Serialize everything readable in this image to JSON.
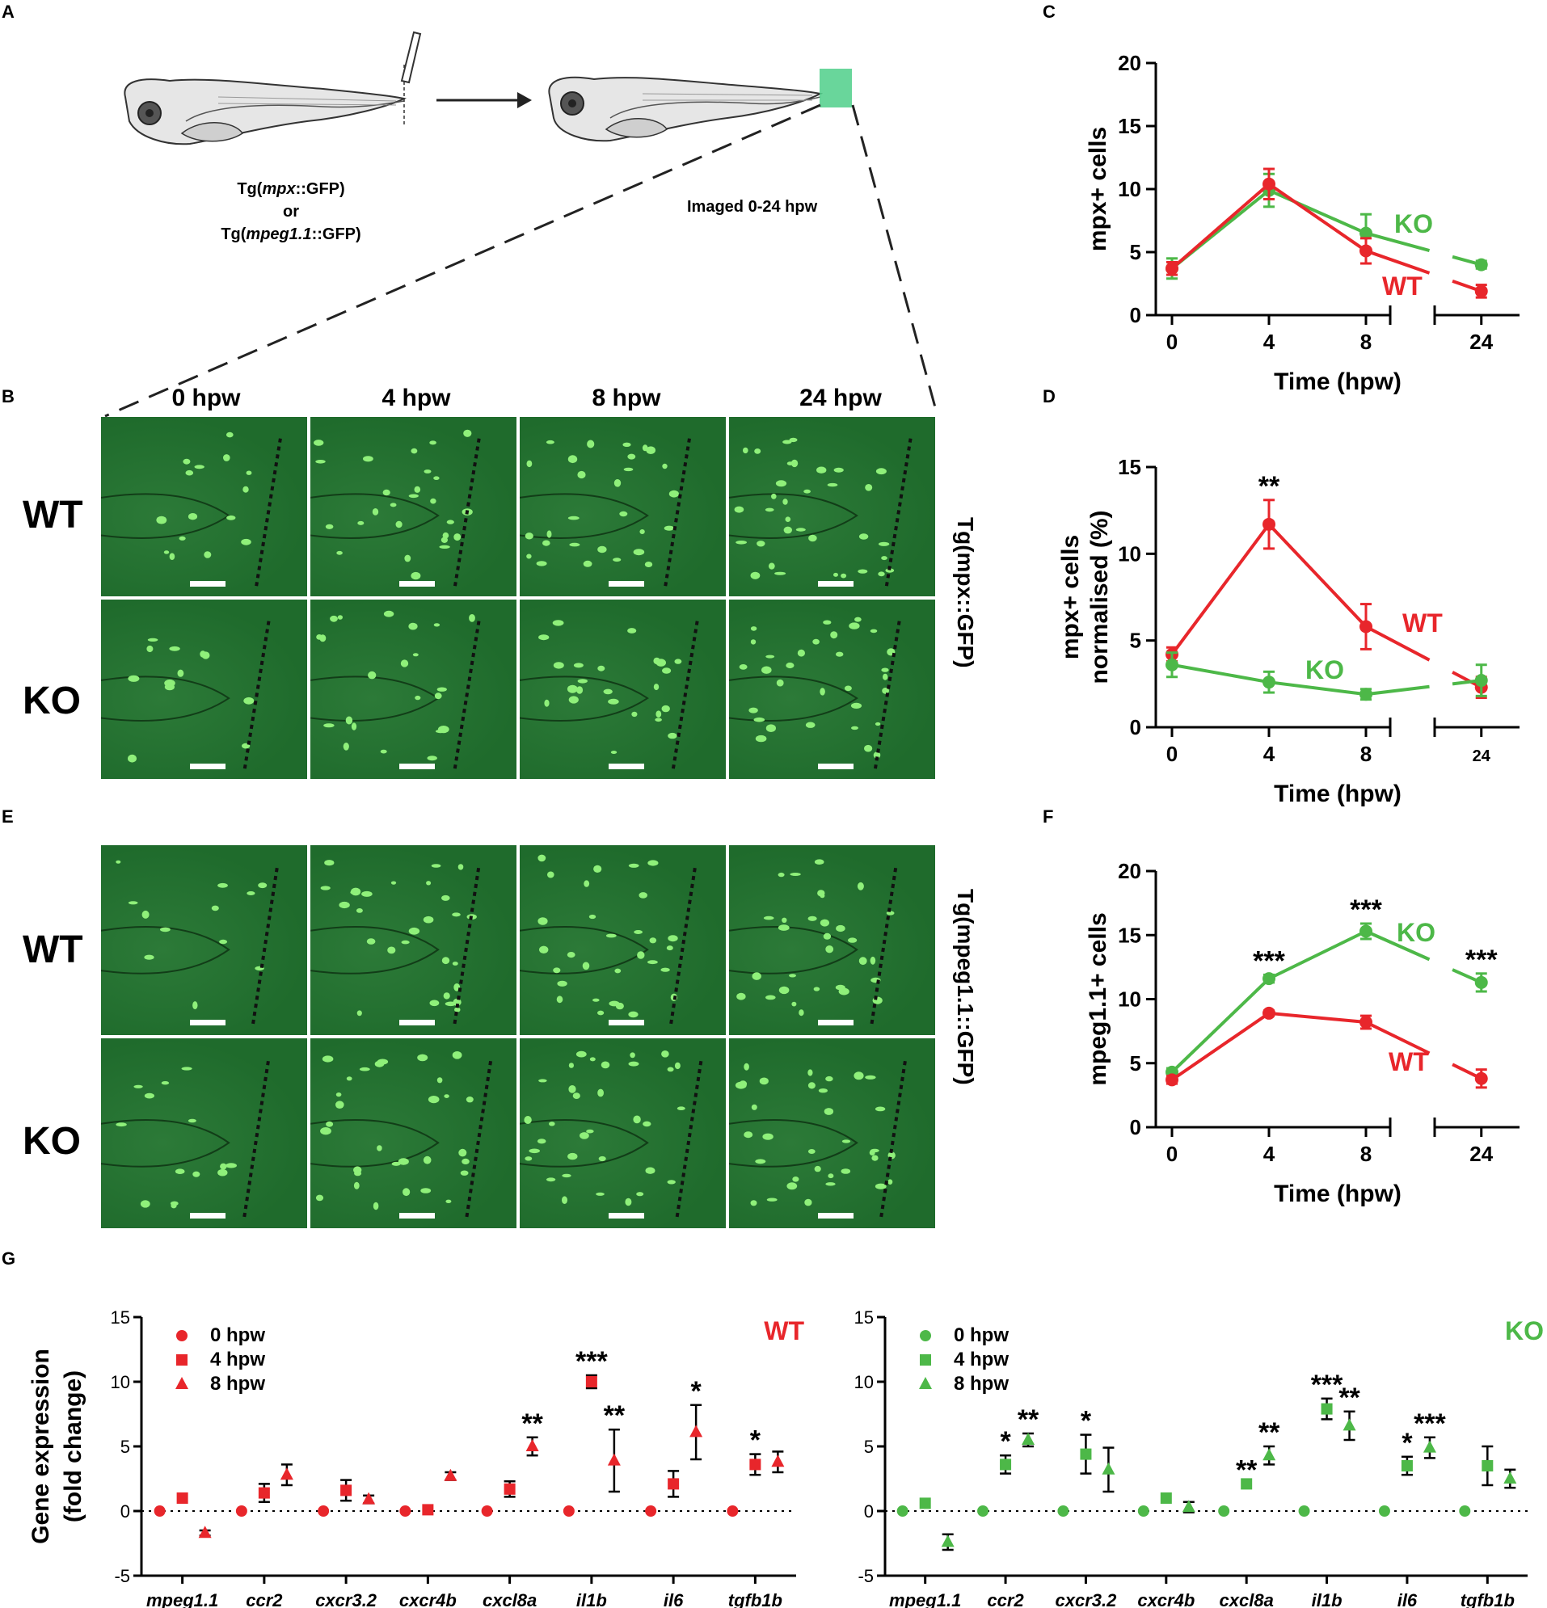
{
  "panel_letters": {
    "A": "A",
    "B": "B",
    "C": "C",
    "D": "D",
    "E": "E",
    "F": "F",
    "G": "G"
  },
  "panelA": {
    "label_line1_pre": "Tg(",
    "label_line1_italic": "mpx",
    "label_line1_post": "::GFP)",
    "label_or": "or",
    "label_line3_pre": "Tg(",
    "label_line3_italic": "mpeg1.1",
    "label_line3_post": "::GFP)",
    "imaged_label": "Imaged 0-24 hpw"
  },
  "panelB": {
    "columns": [
      "0 hpw",
      "4 hpw",
      "8 hpw",
      "24 hpw"
    ],
    "rows": [
      "WT",
      "KO"
    ],
    "side_label": "Tg(mpx::GFP)"
  },
  "panelE": {
    "rows": [
      "WT",
      "KO"
    ],
    "side_label": "Tg(mpeg1.1::GFP)"
  },
  "colors": {
    "wt": "#e8262b",
    "ko": "#4db848"
  },
  "chart_data": [
    {
      "id": "C",
      "type": "line",
      "ylabel": "mpx+ cells",
      "xlabel": "Time (hpw)",
      "x": [
        0,
        4,
        8,
        24
      ],
      "xticks": [
        "0",
        "4",
        "8",
        "24"
      ],
      "ylim": [
        0,
        20
      ],
      "yticks": [
        "0",
        "5",
        "10",
        "15",
        "20"
      ],
      "series": [
        {
          "name": "KO",
          "values": [
            3.7,
            9.9,
            6.5,
            4.0
          ],
          "err": [
            0.8,
            1.3,
            1.5,
            0.3
          ]
        },
        {
          "name": "WT",
          "values": [
            3.7,
            10.4,
            5.1,
            1.9
          ],
          "err": [
            0.5,
            1.2,
            1.0,
            0.5
          ]
        }
      ],
      "annotations": []
    },
    {
      "id": "D",
      "type": "line",
      "ylabel_line1": "mpx+ cells",
      "ylabel_line2": "normalised (%)",
      "xlabel": "Time (hpw)",
      "x": [
        0,
        4,
        8,
        24
      ],
      "xticks": [
        "0",
        "4",
        "8",
        "24"
      ],
      "ylim": [
        0,
        15
      ],
      "yticks": [
        "0",
        "5",
        "10",
        "15"
      ],
      "series": [
        {
          "name": "WT",
          "values": [
            4.2,
            11.7,
            5.8,
            2.3
          ],
          "err": [
            0.4,
            1.4,
            1.3,
            0.6
          ]
        },
        {
          "name": "KO",
          "values": [
            3.6,
            2.6,
            1.9,
            2.7
          ],
          "err": [
            0.7,
            0.6,
            0.3,
            0.9
          ]
        }
      ],
      "annotations": [
        {
          "x": 4,
          "text": "**"
        }
      ]
    },
    {
      "id": "F",
      "type": "line",
      "ylabel": "mpeg1.1+ cells",
      "xlabel": "Time (hpw)",
      "x": [
        0,
        4,
        8,
        24
      ],
      "xticks": [
        "0",
        "4",
        "8",
        "24"
      ],
      "ylim": [
        0,
        20
      ],
      "yticks": [
        "0",
        "5",
        "10",
        "15",
        "20"
      ],
      "series": [
        {
          "name": "KO",
          "values": [
            4.3,
            11.6,
            15.3,
            11.3
          ],
          "err": [
            0.3,
            0.3,
            0.6,
            0.7
          ]
        },
        {
          "name": "WT",
          "values": [
            3.7,
            8.9,
            8.2,
            3.8
          ],
          "err": [
            0.3,
            0.2,
            0.5,
            0.7
          ]
        }
      ],
      "annotations": [
        {
          "x": 4,
          "text": "***"
        },
        {
          "x": 8,
          "text": "***"
        },
        {
          "x": 24,
          "text": "***"
        }
      ]
    },
    {
      "id": "G-WT",
      "type": "scatter",
      "title": "WT",
      "ylabel_line1": "Gene expression",
      "ylabel_line2": "(fold change)",
      "categories": [
        "mpeg1.1",
        "ccr2",
        "cxcr3.2",
        "cxcr4b",
        "cxcl8a",
        "il1b",
        "il6",
        "tgfb1b"
      ],
      "ylim": [
        -5,
        15
      ],
      "yticks": [
        "-5",
        "0",
        "5",
        "10",
        "15"
      ],
      "legend": [
        "0 hpw",
        "4 hpw",
        "8 hpw"
      ],
      "series": [
        {
          "name": "0 hpw",
          "values": [
            0,
            0,
            0,
            0,
            0,
            0,
            0,
            0
          ],
          "err": [
            0,
            0,
            0,
            0,
            0,
            0,
            0,
            0
          ]
        },
        {
          "name": "4 hpw",
          "values": [
            1.0,
            1.4,
            1.6,
            0.1,
            1.7,
            10.0,
            2.1,
            3.6
          ],
          "err": [
            0,
            0.7,
            0.8,
            0,
            0.6,
            0.5,
            1.0,
            0.8
          ]
        },
        {
          "name": "8 hpw",
          "values": [
            -1.7,
            2.8,
            0.9,
            2.7,
            5.0,
            3.9,
            6.1,
            3.8
          ],
          "err": [
            0.2,
            0.8,
            0.3,
            0.3,
            0.7,
            2.4,
            2.1,
            0.8
          ]
        }
      ],
      "stars": [
        {
          "cat": 4,
          "series": 2,
          "text": "**"
        },
        {
          "cat": 5,
          "series": 1,
          "text": "***"
        },
        {
          "cat": 5,
          "series": 2,
          "text": "**"
        },
        {
          "cat": 6,
          "series": 2,
          "text": "*"
        },
        {
          "cat": 7,
          "series": 1,
          "text": "*"
        }
      ]
    },
    {
      "id": "G-KO",
      "type": "scatter",
      "title": "KO",
      "categories": [
        "mpeg1.1",
        "ccr2",
        "cxcr3.2",
        "cxcr4b",
        "cxcl8a",
        "il1b",
        "il6",
        "tgfb1b"
      ],
      "ylim": [
        -5,
        15
      ],
      "yticks": [
        "-5",
        "0",
        "5",
        "10",
        "15"
      ],
      "legend": [
        "0 hpw",
        "4 hpw",
        "8 hpw"
      ],
      "series": [
        {
          "name": "0 hpw",
          "values": [
            0,
            0,
            0,
            0,
            0,
            0,
            0,
            0
          ],
          "err": [
            0,
            0,
            0,
            0,
            0,
            0,
            0,
            0
          ]
        },
        {
          "name": "4 hpw",
          "values": [
            0.6,
            3.6,
            4.4,
            1.0,
            2.1,
            7.9,
            3.5,
            3.5
          ],
          "err": [
            0,
            0.7,
            1.5,
            0,
            0,
            0.8,
            0.7,
            1.5
          ]
        },
        {
          "name": "8 hpw",
          "values": [
            -2.4,
            5.5,
            3.2,
            0.3,
            4.3,
            6.6,
            4.9,
            2.5
          ],
          "err": [
            0.6,
            0.5,
            1.7,
            0.4,
            0.7,
            1.1,
            0.8,
            0.7
          ]
        }
      ],
      "stars": [
        {
          "cat": 1,
          "series": 1,
          "text": "*"
        },
        {
          "cat": 1,
          "series": 2,
          "text": "**"
        },
        {
          "cat": 2,
          "series": 1,
          "text": "*"
        },
        {
          "cat": 4,
          "series": 1,
          "text": "**"
        },
        {
          "cat": 4,
          "series": 2,
          "text": "**"
        },
        {
          "cat": 5,
          "series": 1,
          "text": "***"
        },
        {
          "cat": 5,
          "series": 2,
          "text": "**"
        },
        {
          "cat": 6,
          "series": 1,
          "text": "*"
        },
        {
          "cat": 6,
          "series": 2,
          "text": "***"
        }
      ]
    }
  ]
}
